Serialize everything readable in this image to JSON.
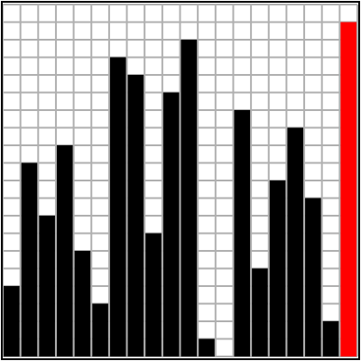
{
  "puzzle": {
    "grid_columns": 20,
    "grid_rows": 20,
    "bar_heights": [
      4,
      11,
      8,
      12,
      6,
      3,
      17,
      16,
      7,
      15,
      18,
      1,
      0,
      14,
      5,
      10,
      13,
      9,
      2,
      19
    ],
    "highlighted_bar_index": 19,
    "colors": {
      "background": "#ffffff",
      "grid_line": "#b0b0b0",
      "bar": "#000000",
      "highlight": "#ff0000",
      "border": "#000000"
    }
  }
}
